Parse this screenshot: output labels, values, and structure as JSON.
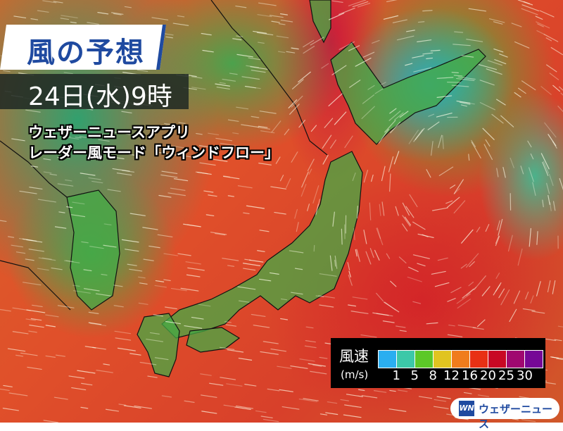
{
  "title": "風の予想",
  "datetime": "24日(水)9時",
  "subtitle_lines": [
    "ウェザーニュースアプリ",
    "レーダー風モード「ウィンドフロー」"
  ],
  "legend": {
    "title": "風速",
    "unit": "(m/s)",
    "ticks": [
      "1",
      "5",
      "8",
      "12",
      "16",
      "20",
      "25",
      "30"
    ],
    "colors": [
      "#2aaef0",
      "#3cc8a8",
      "#5cc828",
      "#e0c420",
      "#f07c1c",
      "#e83014",
      "#c80824",
      "#a00870",
      "#760896"
    ]
  },
  "logo": {
    "mark": "WN",
    "text": "ウェザーニュース"
  },
  "map": {
    "region": "Japan",
    "land_color": "#3ea84a"
  }
}
